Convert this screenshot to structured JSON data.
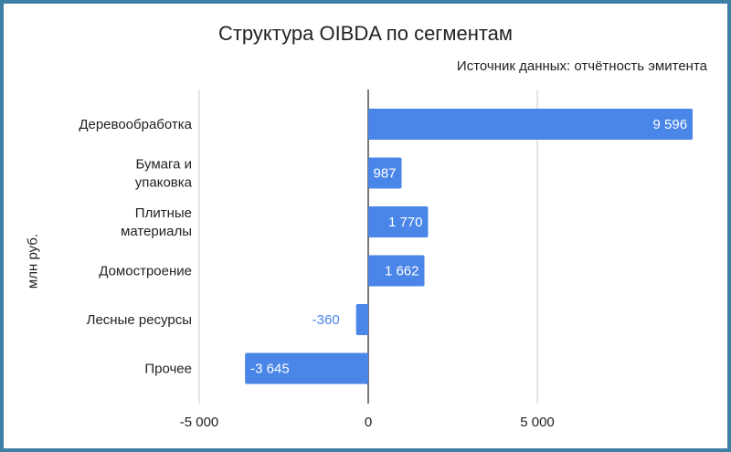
{
  "chart_data": {
    "type": "bar",
    "orientation": "horizontal",
    "title": "Структура OIBDA по сегментам",
    "subtitle": "Источник данных: отчётность эмитента",
    "ylabel": "млн руб.",
    "xlabel": "",
    "categories": [
      [
        "Деревообработка"
      ],
      [
        "Бумага и",
        "упаковка"
      ],
      [
        "Плитные",
        "материалы"
      ],
      [
        "Домостроение"
      ],
      [
        "Лесные ресурсы"
      ],
      [
        "Прочее"
      ]
    ],
    "values": [
      9596,
      987,
      1770,
      1662,
      -360,
      -3645
    ],
    "data_labels": [
      "9 596",
      "987",
      "1 770",
      "1 662",
      "-360",
      "-3 645"
    ],
    "xlim": [
      -5000,
      10000
    ],
    "xticks": [
      -5000,
      0,
      5000
    ],
    "xtick_labels": [
      "-5 000",
      "0",
      "5 000"
    ],
    "grid": true,
    "legend": "none",
    "colors": {
      "bar": "#4a86e8",
      "label_inside": "#ffffff",
      "label_outside": "#4a86e8",
      "grid": "#cccccc",
      "zero_line": "#222222",
      "border": "#3f7fa6"
    }
  }
}
